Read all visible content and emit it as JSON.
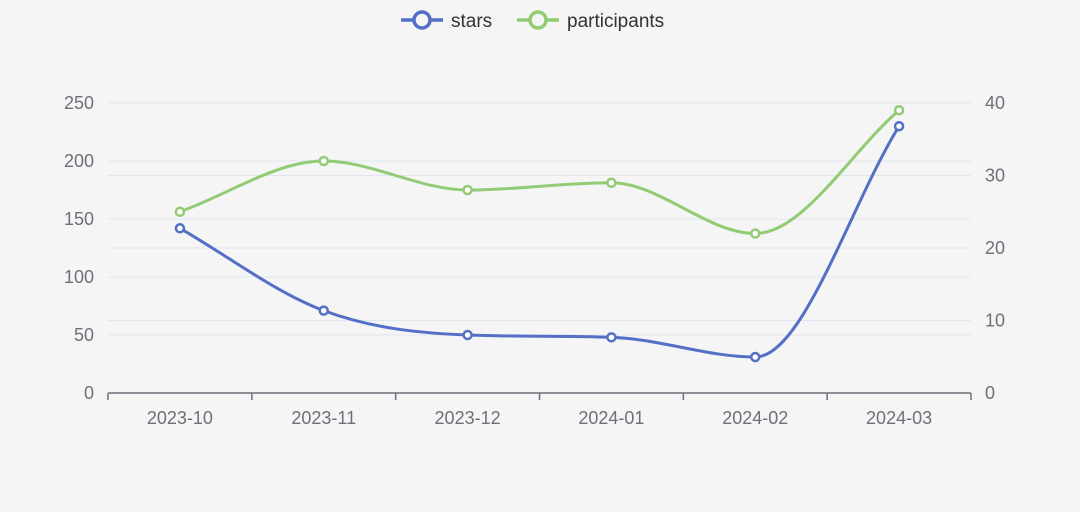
{
  "chart_data": {
    "type": "line",
    "categories": [
      "2023-10",
      "2023-11",
      "2023-12",
      "2024-01",
      "2024-02",
      "2024-03"
    ],
    "series": [
      {
        "name": "stars",
        "axis": "left",
        "values": [
          142,
          71,
          50,
          48,
          31,
          230
        ],
        "color": "#5470c6"
      },
      {
        "name": "participants",
        "axis": "right",
        "values": [
          25,
          32,
          28,
          29,
          22,
          39
        ],
        "color": "#91cc75"
      }
    ],
    "y_left": {
      "min": 0,
      "max": 250,
      "ticks": [
        "0",
        "50",
        "100",
        "150",
        "200",
        "250"
      ]
    },
    "y_right": {
      "min": 0,
      "max": 40,
      "ticks": [
        "0",
        "10",
        "20",
        "30",
        "40"
      ]
    },
    "grid": true,
    "smooth": true,
    "legend_position": "top-center"
  }
}
